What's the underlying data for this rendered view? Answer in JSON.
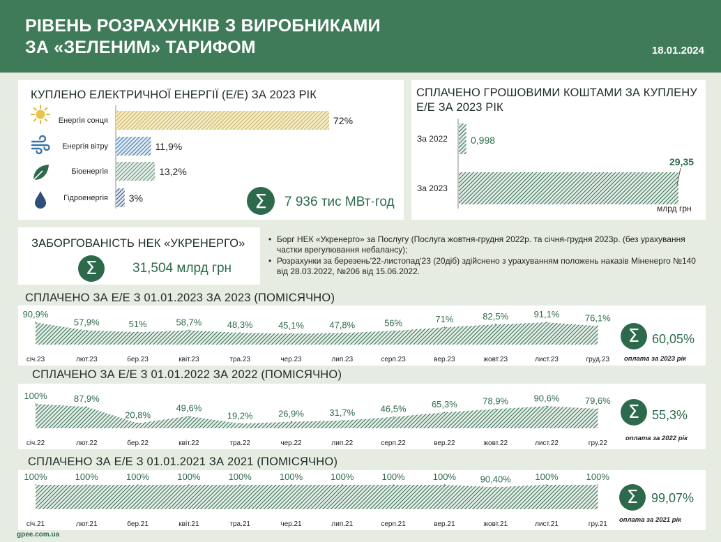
{
  "header": {
    "title_line1": "РІВЕНЬ РОЗРАХУНКІВ З ВИРОБНИКАМИ",
    "title_line2": "ЗА «ЗЕЛЕНИМ» ТАРИФОМ",
    "date": "18.01.2024"
  },
  "bought": {
    "title": "КУПЛЕНО ЕЛЕКТРИЧНОЇ ЕНЕРГІЇ (Е/Е) ЗА 2023 РІК",
    "total": "7 936 тис МВт·год",
    "icons": [
      "sun-icon",
      "wind-icon",
      "leaf-icon",
      "water-drop-icon"
    ],
    "colors": {
      "sun": "#c9b25a",
      "wind": "#3a74a8",
      "bio": "#3f7a59",
      "hydro": "#2d4f78"
    }
  },
  "paid_money": {
    "title_line1": "СПЛАЧЕНО ГРОШОВИМИ КОШТАМИ ЗА КУПЛЕНУ",
    "title_line2": "Е/Е ЗА 2023 РІК",
    "unit": "млрд грн"
  },
  "debt": {
    "title": "ЗАБОРГОВАНІСТЬ НЕК «УКРЕНЕРГО»",
    "value": "31,504 млрд грн"
  },
  "notes": [
    "Борг НЕК «Укренерго» за Послугу (Послуга жовтня-грудня 2022р. та січня-грудня 2023р. (без урахування частки врегулювання небалансу);",
    "Розрахунки за березень'22-листопад'23 (20діб) здійснено з урахуванням положень наказів Міненерго №140 від 28.03.2022, №206 від 15.06.2022."
  ],
  "monthly_2023": {
    "title": "СПЛАЧЕНО ЗА Е/Е З 01.01.2023 ЗА 2023  (ПОМІСЯЧНО)",
    "sum": "60,05%",
    "sum_label": "оплата за 2023 рік"
  },
  "monthly_2022": {
    "title": "СПЛАЧЕНО ЗА Е/Е З 01.01.2022 ЗА 2022 (ПОМІСЯЧНО)",
    "sum": "55,3%",
    "sum_label": "оплата за 2022 рік"
  },
  "monthly_2021": {
    "title": "СПЛАЧЕНО ЗА Е/Е З 01.01.2021 ЗА 2021 (ПОМІСЯЧНО)",
    "sum": "99,07%",
    "sum_label": "оплата за 2021 рік"
  },
  "footer": "gpee.com.ua",
  "accent_color": "#2d6a4c",
  "chart_data": [
    {
      "type": "bar",
      "orientation": "horizontal",
      "categories": [
        "Енергія сонця",
        "Енергія вітру",
        "Біоенергія",
        "Гідроенергія"
      ],
      "values": [
        72,
        11.9,
        13.2,
        3
      ],
      "labels": [
        "72%",
        "11,9%",
        "13,2%",
        "3%"
      ],
      "xlim": [
        0,
        100
      ]
    },
    {
      "type": "bar",
      "orientation": "horizontal",
      "categories": [
        "За 2022",
        "За 2023"
      ],
      "values": [
        0.998,
        29.35
      ],
      "labels": [
        "0,998",
        "29,35"
      ],
      "xlim": [
        0,
        29.35
      ]
    },
    {
      "type": "area",
      "categories": [
        "січ.23",
        "лют.23",
        "бер.23",
        "квіт.23",
        "тра.23",
        "чер.23",
        "лип.23",
        "серп.23",
        "вер.23",
        "жовт.23",
        "лист.23",
        "груд.23"
      ],
      "values": [
        90.9,
        57.9,
        51,
        58.7,
        48.3,
        45.1,
        47.8,
        56,
        71,
        82.5,
        91.1,
        76.1
      ],
      "labels": [
        "90,9%",
        "57,9%",
        "51%",
        "58,7%",
        "48,3%",
        "45,1%",
        "47,8%",
        "56%",
        "71%",
        "82,5%",
        "91,1%",
        "76,1%"
      ],
      "ylim": [
        0,
        100
      ]
    },
    {
      "type": "area",
      "categories": [
        "січ.22",
        "лют.22",
        "бер.22",
        "квіт.22",
        "тра.22",
        "чер.22",
        "лип.22",
        "серп.22",
        "вер.22",
        "жовт.22",
        "лист.22",
        "гру.22"
      ],
      "values": [
        100,
        87.9,
        20.8,
        49.6,
        19.2,
        26.9,
        31.7,
        46.5,
        65.3,
        78.9,
        90.6,
        79.6
      ],
      "labels": [
        "100%",
        "87,9%",
        "20,8%",
        "49,6%",
        "19,2%",
        "26,9%",
        "31,7%",
        "46,5%",
        "65,3%",
        "78,9%",
        "90,6%",
        "79,6%"
      ],
      "ylim": [
        0,
        100
      ]
    },
    {
      "type": "area",
      "categories": [
        "січ.21",
        "лют.21",
        "бер.21",
        "квіт.21",
        "тра.21",
        "чер.21",
        "лип.21",
        "серп.21",
        "вер.21",
        "жовт.21",
        "лист.21",
        "гру.21"
      ],
      "values": [
        100,
        100,
        100,
        100,
        100,
        100,
        100,
        100,
        100,
        90.4,
        100,
        100
      ],
      "labels": [
        "100%",
        "100%",
        "100%",
        "100%",
        "100%",
        "100%",
        "100%",
        "100%",
        "100%",
        "90,40%",
        "100%",
        "100%"
      ],
      "ylim": [
        0,
        100
      ]
    }
  ]
}
